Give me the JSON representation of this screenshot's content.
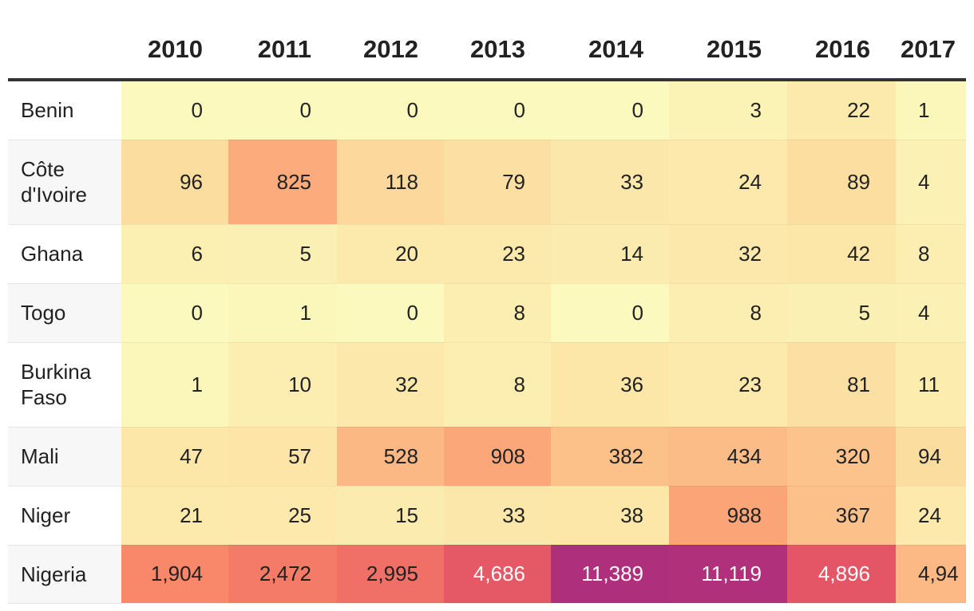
{
  "table": {
    "columns": [
      "2010",
      "2011",
      "2012",
      "2013",
      "2014",
      "2015",
      "2016",
      "2017"
    ],
    "rows": [
      {
        "country": "Benin",
        "values": [
          "0",
          "0",
          "0",
          "0",
          "0",
          "3",
          "22",
          "1"
        ]
      },
      {
        "country": "Côte d'Ivoire",
        "values": [
          "96",
          "825",
          "118",
          "79",
          "33",
          "24",
          "89",
          "4"
        ]
      },
      {
        "country": "Ghana",
        "values": [
          "6",
          "5",
          "20",
          "23",
          "14",
          "32",
          "42",
          "8"
        ]
      },
      {
        "country": "Togo",
        "values": [
          "0",
          "1",
          "0",
          "8",
          "0",
          "8",
          "5",
          "4"
        ]
      },
      {
        "country": "Burkina Faso",
        "values": [
          "1",
          "10",
          "32",
          "8",
          "36",
          "23",
          "81",
          "11"
        ]
      },
      {
        "country": "Mali",
        "values": [
          "47",
          "57",
          "528",
          "908",
          "382",
          "434",
          "320",
          "94"
        ]
      },
      {
        "country": "Niger",
        "values": [
          "21",
          "25",
          "15",
          "33",
          "38",
          "988",
          "367",
          "24"
        ]
      },
      {
        "country": "Nigeria",
        "values": [
          "1,904",
          "2,472",
          "2,995",
          "4,686",
          "11,389",
          "11,119",
          "4,896",
          "4,94"
        ]
      }
    ]
  },
  "colors": {
    "header_rule": "#333333",
    "scale_low": "#fbf9bd",
    "scale_high": "#ae2f7c"
  }
}
